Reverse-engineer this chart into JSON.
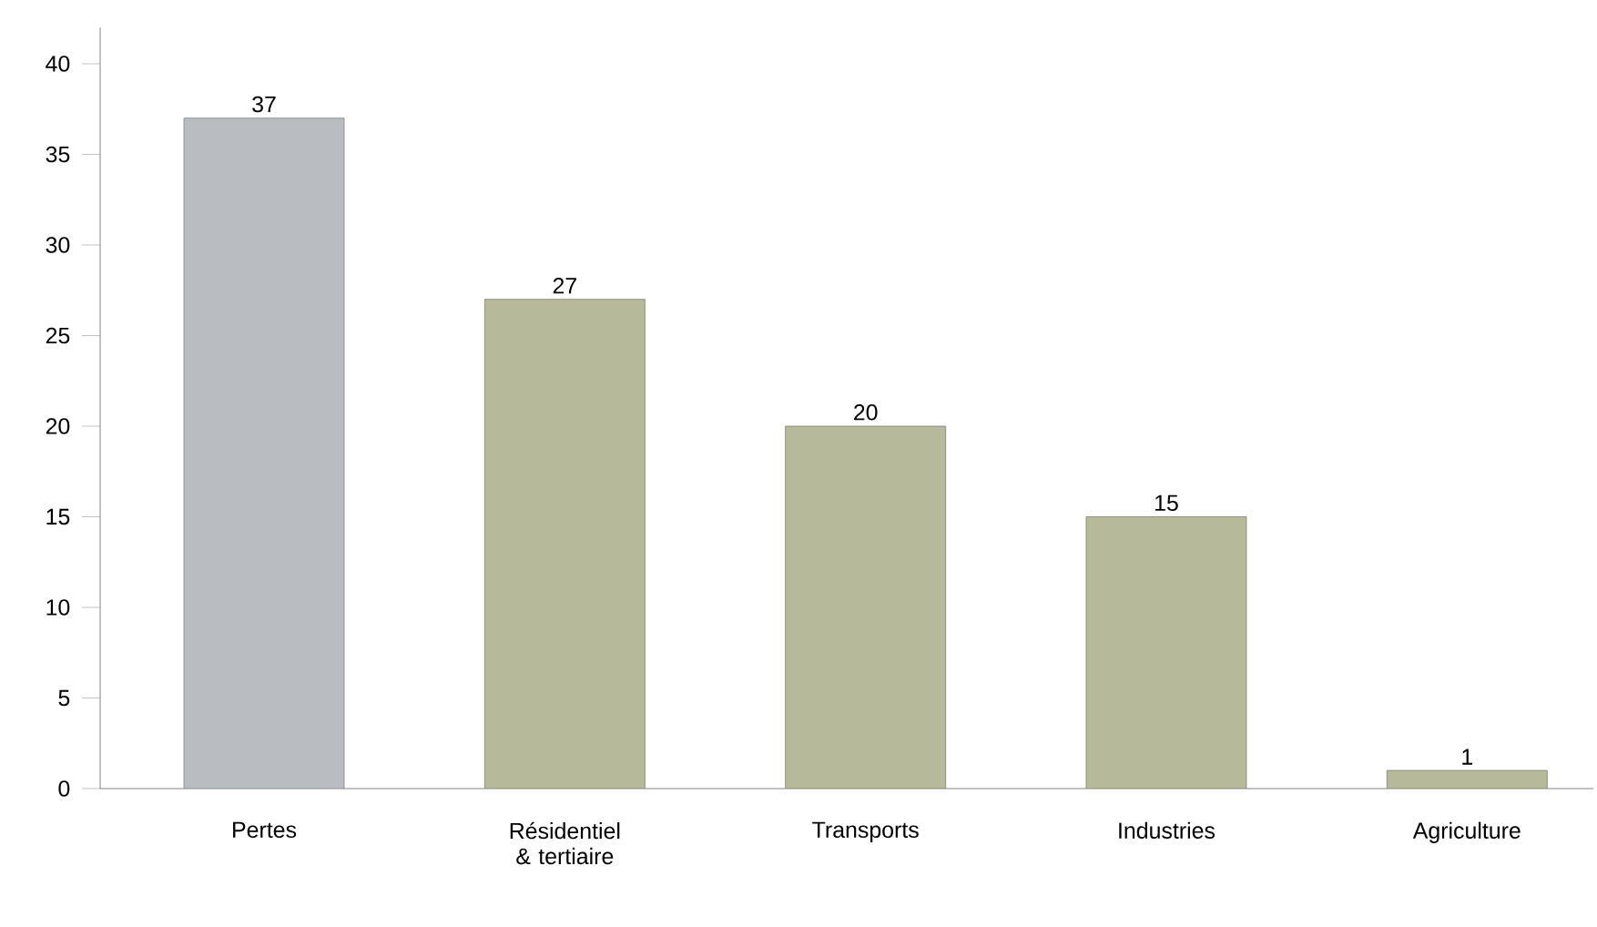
{
  "chart_data": {
    "type": "bar",
    "categories": [
      "Pertes",
      "Résidentiel & tertiaire",
      "Transports",
      "Industries",
      "Agriculture"
    ],
    "values": [
      37,
      27,
      20,
      15,
      1
    ],
    "colors": [
      "#b9bcc0",
      "#b6ba9b",
      "#b6ba9b",
      "#b6ba9b",
      "#b6ba9b"
    ],
    "ylim": [
      0,
      42
    ],
    "yticks": [
      0,
      5,
      10,
      15,
      20,
      25,
      30,
      35,
      40
    ],
    "data_labels": true
  }
}
